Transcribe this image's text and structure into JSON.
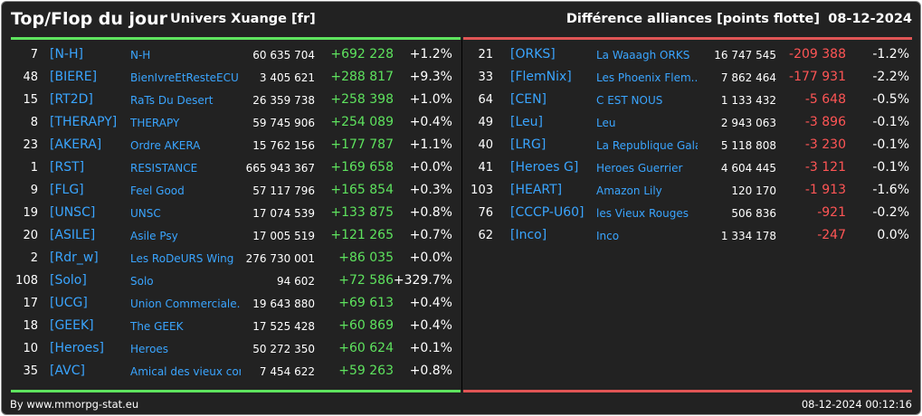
{
  "header": {
    "title": "Top/Flop du jour",
    "universe": "Univers Xuange [fr]",
    "right_title": "Différence alliances [points flotte]",
    "date": "08-12-2024"
  },
  "colors": {
    "positive": "#5ee35e",
    "negative": "#ff5555",
    "tag": "#3aa5ff",
    "background": "#222222"
  },
  "top": [
    {
      "rank": "7",
      "tag": "[N-H]",
      "name": "N-H",
      "points": "60 635 704",
      "diff": "+692 228",
      "pct": "+1.2%"
    },
    {
      "rank": "48",
      "tag": "[BIERE]",
      "name": "BienIvreEtResteECU",
      "points": "3 405 621",
      "diff": "+288 817",
      "pct": "+9.3%"
    },
    {
      "rank": "15",
      "tag": "[RT2D]",
      "name": "RaTs Du Desert",
      "points": "26 359 738",
      "diff": "+258 398",
      "pct": "+1.0%"
    },
    {
      "rank": "8",
      "tag": "[THERAPY]",
      "name": "THERAPY",
      "points": "59 745 906",
      "diff": "+254 089",
      "pct": "+0.4%"
    },
    {
      "rank": "23",
      "tag": "[AKERA]",
      "name": "Ordre AKERA",
      "points": "15 762 156",
      "diff": "+177 787",
      "pct": "+1.1%"
    },
    {
      "rank": "1",
      "tag": "[RST]",
      "name": "RESISTANCE",
      "points": "665 943 367",
      "diff": "+169 658",
      "pct": "+0.0%"
    },
    {
      "rank": "9",
      "tag": "[FLG]",
      "name": "Feel Good",
      "points": "57 117 796",
      "diff": "+165 854",
      "pct": "+0.3%"
    },
    {
      "rank": "19",
      "tag": "[UNSC]",
      "name": "UNSC",
      "points": "17 074 539",
      "diff": "+133 875",
      "pct": "+0.8%"
    },
    {
      "rank": "20",
      "tag": "[ASILE]",
      "name": "Asile Psy",
      "points": "17 005 519",
      "diff": "+121 265",
      "pct": "+0.7%"
    },
    {
      "rank": "2",
      "tag": "[Rdr_w]",
      "name": "Les RoDeURS Wing",
      "points": "276 730 001",
      "diff": "+86 035",
      "pct": "+0.0%"
    },
    {
      "rank": "108",
      "tag": "[Solo]",
      "name": "Solo",
      "points": "94 602",
      "diff": "+72 586",
      "pct": "+329.7%"
    },
    {
      "rank": "17",
      "tag": "[UCG]",
      "name": "Union Commerciale...",
      "points": "19 643 880",
      "diff": "+69 613",
      "pct": "+0.4%"
    },
    {
      "rank": "18",
      "tag": "[GEEK]",
      "name": "The GEEK",
      "points": "17 525 428",
      "diff": "+60 869",
      "pct": "+0.4%"
    },
    {
      "rank": "10",
      "tag": "[Heroes]",
      "name": "Heroes",
      "points": "50 272 350",
      "diff": "+60 624",
      "pct": "+0.1%"
    },
    {
      "rank": "35",
      "tag": "[AVC]",
      "name": "Amical des vieux con",
      "points": "7 454 622",
      "diff": "+59 263",
      "pct": "+0.8%"
    }
  ],
  "flop": [
    {
      "rank": "21",
      "tag": "[ORKS]",
      "name": "La Waaagh ORKS",
      "points": "16 747 545",
      "diff": "-209 388",
      "pct": "-1.2%"
    },
    {
      "rank": "33",
      "tag": "[FlemNix]",
      "name": "Les Phoenix Flem...",
      "points": "7 862 464",
      "diff": "-177 931",
      "pct": "-2.2%"
    },
    {
      "rank": "64",
      "tag": "[CEN]",
      "name": "C EST NOUS",
      "points": "1 133 432",
      "diff": "-5 648",
      "pct": "-0.5%"
    },
    {
      "rank": "49",
      "tag": "[Leu]",
      "name": "Leu",
      "points": "2 943 063",
      "diff": "-3 896",
      "pct": "-0.1%"
    },
    {
      "rank": "40",
      "tag": "[LRG]",
      "name": "La Republique Gala...",
      "points": "5 118 808",
      "diff": "-3 230",
      "pct": "-0.1%"
    },
    {
      "rank": "41",
      "tag": "[Heroes G]",
      "name": "Heroes Guerrier",
      "points": "4 604 445",
      "diff": "-3 121",
      "pct": "-0.1%"
    },
    {
      "rank": "103",
      "tag": "[HEART]",
      "name": "Amazon Lily",
      "points": "120 170",
      "diff": "-1 913",
      "pct": "-1.6%"
    },
    {
      "rank": "76",
      "tag": "[CCCP-U60]",
      "name": "les Vieux Rouges",
      "points": "506 836",
      "diff": "-921",
      "pct": "-0.2%"
    },
    {
      "rank": "62",
      "tag": "[Inco]",
      "name": "Inco",
      "points": "1 334 178",
      "diff": "-247",
      "pct": "0.0%"
    }
  ],
  "footer": {
    "credit": "By www.mmorpg-stat.eu",
    "timestamp": "08-12-2024 00:12:16"
  }
}
